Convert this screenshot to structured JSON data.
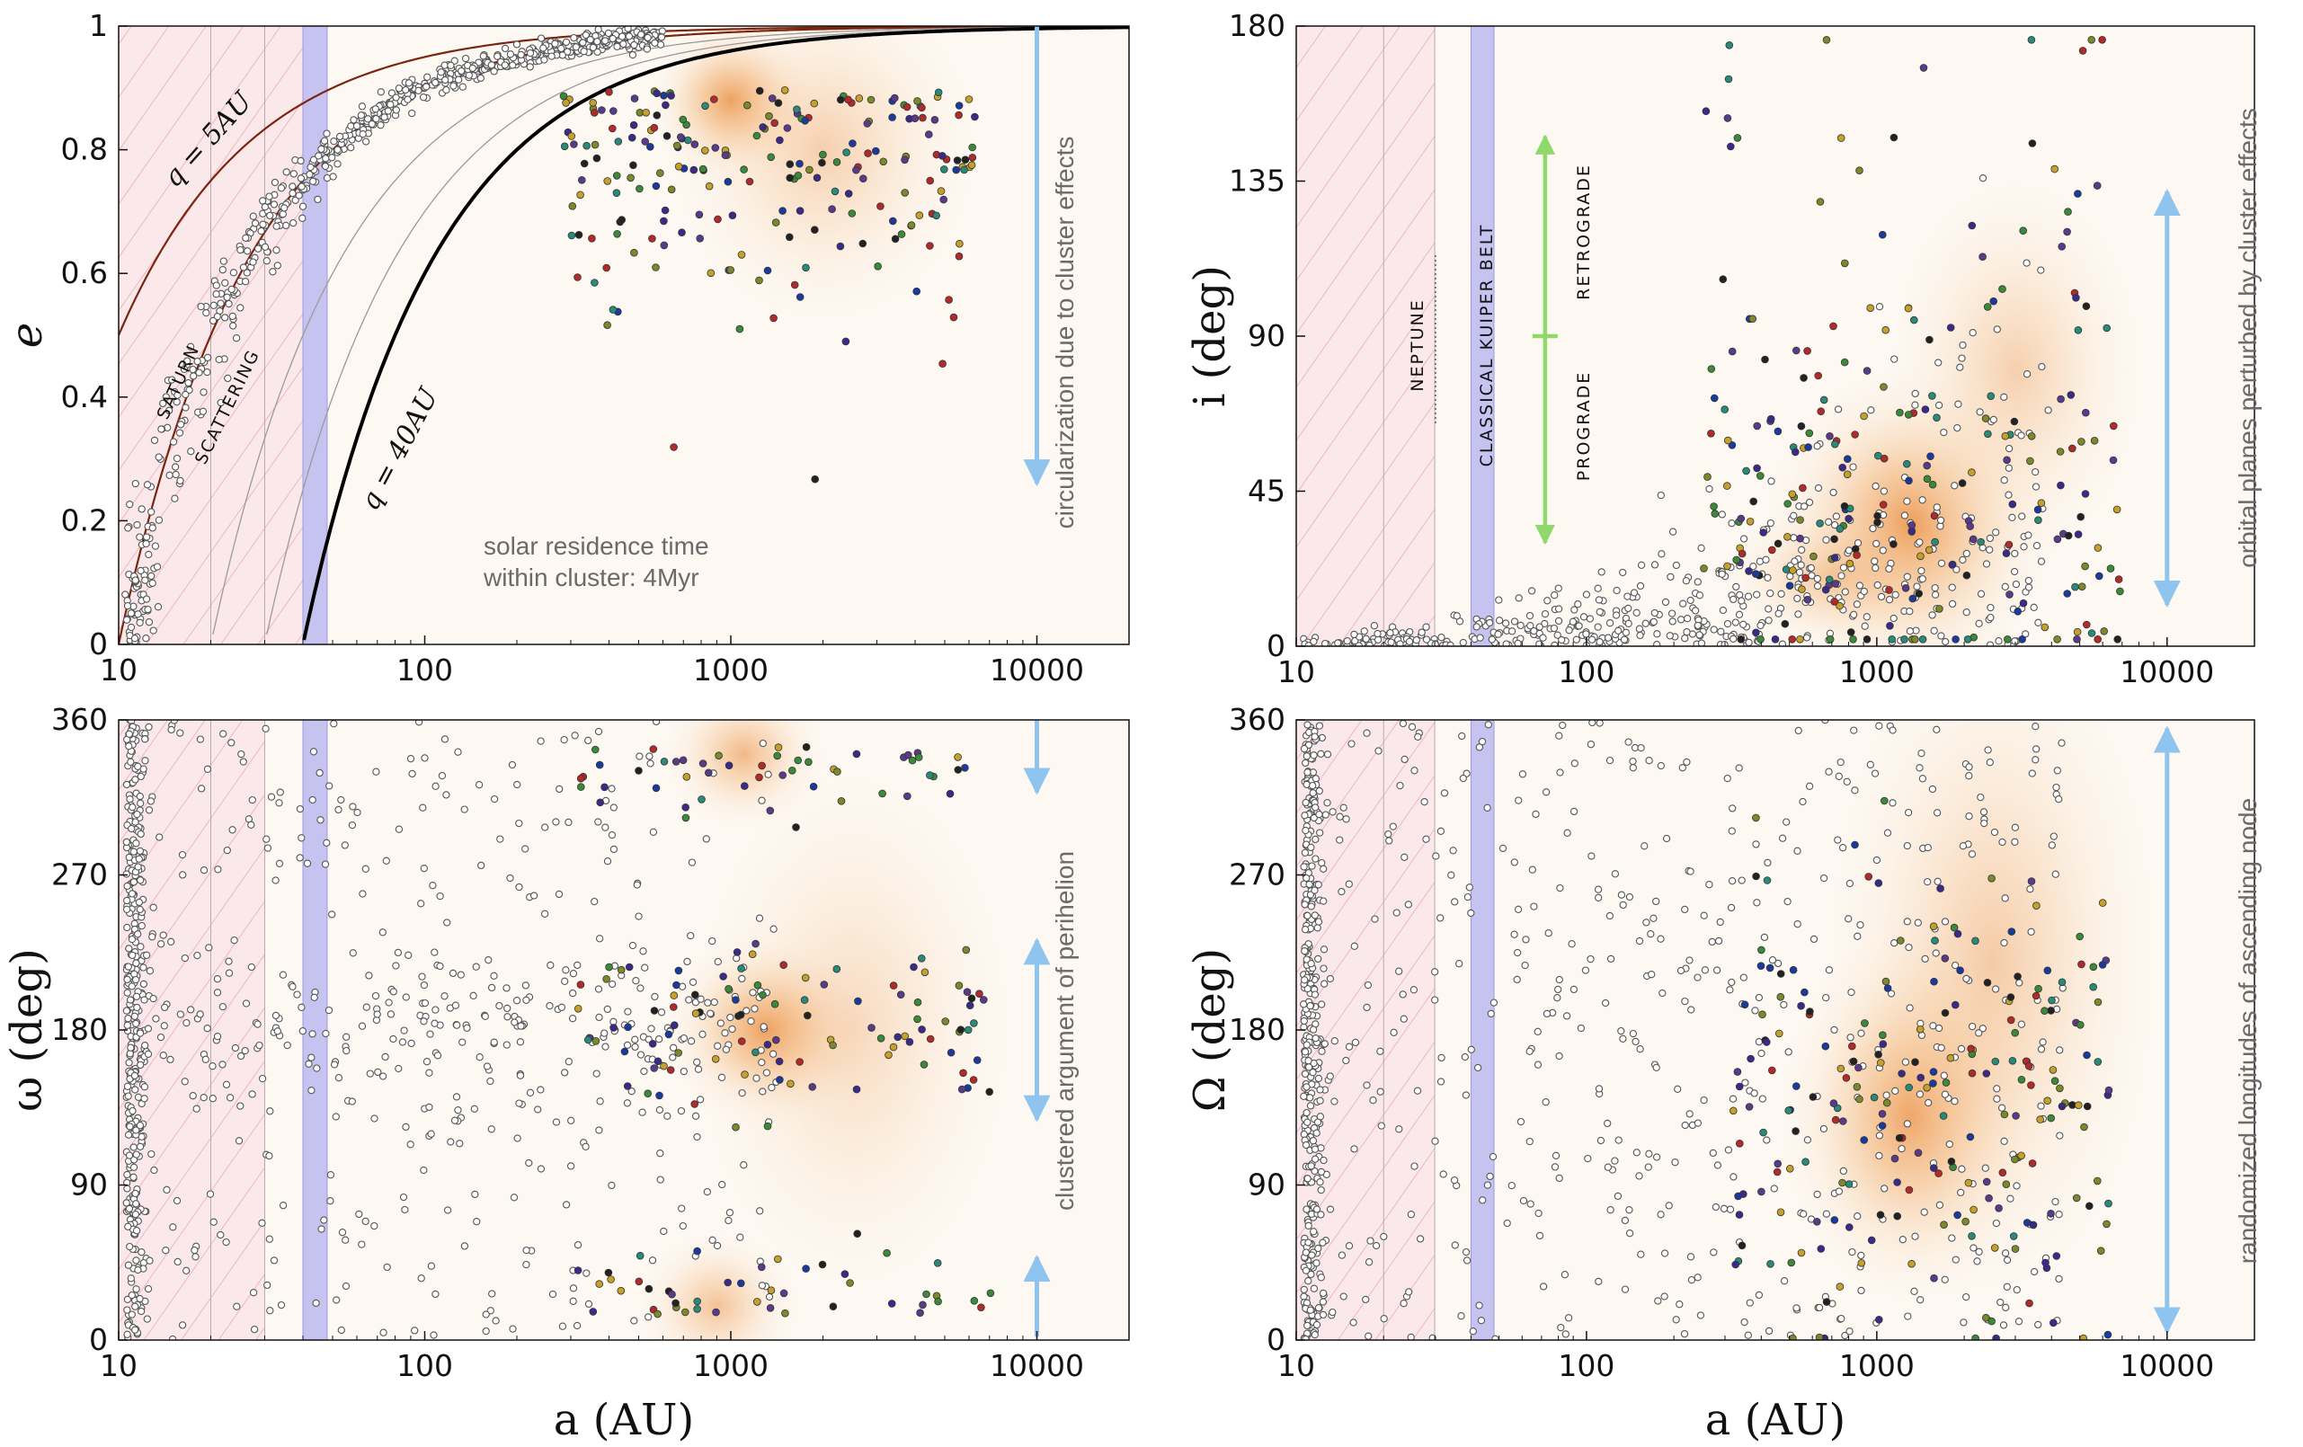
{
  "chart_data": [
    {
      "id": "e",
      "type": "scatter",
      "title": "",
      "xlabel": "a (AU)",
      "ylabel": "e",
      "xscale": "log",
      "xlim": [
        10,
        20000
      ],
      "ylim": [
        0,
        1
      ],
      "xticks": [
        10,
        100,
        1000,
        10000
      ],
      "yticks": [
        0,
        0.2,
        0.4,
        0.6,
        0.8,
        1
      ],
      "x_tick_labels": [
        "10",
        "100",
        "1000",
        "10000"
      ],
      "y_tick_labels": [
        "0",
        "0.2",
        "0.4",
        "0.6",
        "0.8",
        "1"
      ],
      "show_xticklabels": true,
      "kuiper_belt": [
        40,
        48
      ],
      "hatched_region": [
        10,
        40
      ],
      "density_peaks": [
        [
          1000,
          0.88,
          1.6,
          0.09,
          0.85
        ],
        [
          2000,
          0.8,
          2.5,
          0.2,
          0.3
        ]
      ],
      "curves": [
        {
          "name": "q = 5AU",
          "q": 5,
          "color": "#7a2510",
          "width": 2.2
        },
        {
          "name": "saturn scattering (q = 10AU)",
          "q": 10,
          "color": "#7a2510",
          "width": 2.2
        },
        {
          "name": "q = 20AU",
          "q": 20,
          "color": "#9a9a9a",
          "width": 1.3
        },
        {
          "name": "q = 30AU",
          "q": 30,
          "color": "#9a9a9a",
          "width": 1.3
        },
        {
          "name": "q = 40AU",
          "q": 40,
          "color": "#000000",
          "width": 4
        }
      ],
      "arrow": {
        "x": 10000,
        "from": 1,
        "to": 0.26,
        "heads": "end",
        "color": "#8fc4ef"
      },
      "annotations": {
        "q5": "q = 5AU",
        "q40": "q = 40AU",
        "saturn": "SATURN",
        "scattering": "SCATTERING",
        "residence_1": "solar residence time",
        "residence_2": "within cluster: 4Myr",
        "arrow_label": "circularization due to cluster effects"
      },
      "scatter_summary": {
        "background_points": "~650 hollow gray circles along the q≈10AU scattering curve",
        "cluster_points": "~220 colored points, a 300–6000 AU, e 0.25–0.97"
      }
    },
    {
      "id": "i",
      "type": "scatter",
      "title": "",
      "xlabel": "a (AU)",
      "ylabel": "i (deg)",
      "xscale": "log",
      "xlim": [
        10,
        20000
      ],
      "ylim": [
        0,
        180
      ],
      "xticks": [
        10,
        100,
        1000,
        10000
      ],
      "yticks": [
        0,
        45,
        90,
        135,
        180
      ],
      "x_tick_labels": [
        "10",
        "100",
        "1000",
        "10000"
      ],
      "y_tick_labels": [
        "0",
        "45",
        "90",
        "135",
        "180"
      ],
      "show_xticklabels": true,
      "kuiper_belt": [
        40,
        48
      ],
      "hatched_region": [
        10,
        30
      ],
      "density_peaks": [
        [
          1300,
          35,
          2.4,
          32,
          0.85
        ],
        [
          3000,
          80,
          2.2,
          40,
          0.3
        ],
        [
          700,
          20,
          2,
          15,
          0.35
        ]
      ],
      "arrow": {
        "x": 10000,
        "from": 12,
        "to": 132,
        "heads": "both",
        "color": "#8fc4ef"
      },
      "green_arrow": {
        "x": 72,
        "from": 30,
        "to": 148,
        "tick_at": 90,
        "color": "#8fd96a"
      },
      "annotations": {
        "neptune": "NEPTUNE",
        "kuiper": "CLASSICAL KUIPER BELT",
        "prograde": "PROGRADE",
        "retrograde": "RETROGRADE",
        "arrow_label": "orbital planes perturbed by cluster effects"
      },
      "scatter_summary": {
        "background_points": "~500 hollow circles near i≈0–20 spreading with a",
        "cluster_points": "~250 colored points, a 300–6000 AU, i 0–175"
      }
    },
    {
      "id": "omega",
      "type": "scatter",
      "title": "",
      "xlabel": "a (AU)",
      "ylabel": "ω (deg)",
      "xscale": "log",
      "xlim": [
        10,
        20000
      ],
      "ylim": [
        0,
        360
      ],
      "xticks": [
        10,
        100,
        1000,
        10000
      ],
      "yticks": [
        0,
        90,
        180,
        270,
        360
      ],
      "x_tick_labels": [
        "10",
        "100",
        "1000",
        "10000"
      ],
      "y_tick_labels": [
        "0",
        "90",
        "180",
        "270",
        "360"
      ],
      "show_xticklabels": true,
      "kuiper_belt": [
        40,
        48
      ],
      "hatched_region": [
        10,
        30
      ],
      "density_peaks": [
        [
          1300,
          180,
          1.8,
          38,
          0.85
        ],
        [
          1100,
          340,
          1.6,
          30,
          0.55
        ],
        [
          900,
          20,
          1.6,
          30,
          0.45
        ],
        [
          2500,
          180,
          2.6,
          110,
          0.2
        ]
      ],
      "arrows": [
        {
          "x": 10000,
          "from": 360,
          "to": 318,
          "heads": "end",
          "color": "#8fc4ef"
        },
        {
          "x": 10000,
          "from": 232,
          "to": 128,
          "heads": "both",
          "color": "#8fc4ef"
        },
        {
          "x": 10000,
          "from": 2,
          "to": 48,
          "heads": "end",
          "color": "#8fc4ef"
        }
      ],
      "annotations": {
        "arrow_label": "clustered argument of perihelion"
      },
      "scatter_summary": {
        "background_points": "~900 hollow circles, dense column at a≈11AU, uniform ω",
        "cluster_points": "~200 colored points clustered at ω≈180, 0 and 360"
      }
    },
    {
      "id": "Omega",
      "type": "scatter",
      "title": "",
      "xlabel": "a (AU)",
      "ylabel": "Ω (deg)",
      "xscale": "log",
      "xlim": [
        10,
        20000
      ],
      "ylim": [
        0,
        360
      ],
      "xticks": [
        10,
        100,
        1000,
        10000
      ],
      "yticks": [
        0,
        90,
        180,
        270,
        360
      ],
      "x_tick_labels": [
        "10",
        "100",
        "1000",
        "10000"
      ],
      "y_tick_labels": [
        "0",
        "90",
        "180",
        "270",
        "360"
      ],
      "show_xticklabels": true,
      "kuiper_belt": [
        40,
        48
      ],
      "hatched_region": [
        10,
        30
      ],
      "density_peaks": [
        [
          1300,
          130,
          2.2,
          75,
          0.8
        ],
        [
          2500,
          220,
          2.8,
          140,
          0.35
        ]
      ],
      "arrow": {
        "x": 10000,
        "from": 5,
        "to": 355,
        "heads": "both",
        "color": "#8fc4ef"
      },
      "annotations": {
        "arrow_label": "randomized longitudes of ascending node"
      },
      "scatter_summary": {
        "background_points": "~900 hollow circles, dense column at a≈11AU, uniform Ω",
        "cluster_points": "~220 colored points, a 300–6000 AU, Ω 0–360"
      }
    }
  ],
  "colors": {
    "hatch_bg": "#fbe8ea",
    "hatch_line": "#e7a3ad",
    "kuiper": "#c7c3f0",
    "kuiper_edge": "#9e98e0",
    "glow_core": "#e98633",
    "hollow_stroke": "#555555",
    "point_palette": [
      "#3a2a8a",
      "#b22a2a",
      "#3b8a3a",
      "#222222",
      "#7a8a2a",
      "#5a3a8a",
      "#2a8a7a",
      "#c5a02a",
      "#1a3aa0"
    ]
  }
}
